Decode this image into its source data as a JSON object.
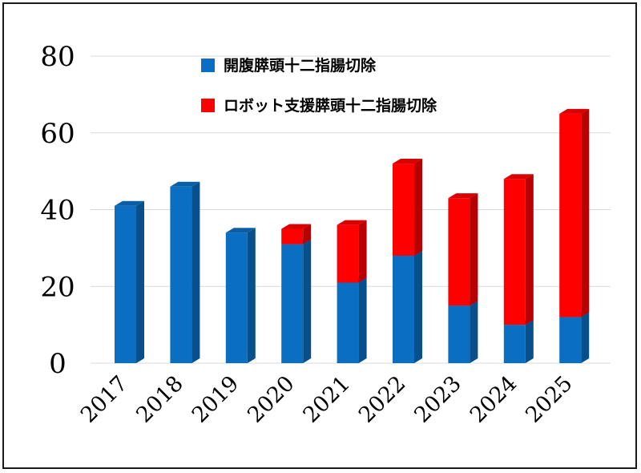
{
  "chart_data": {
    "type": "bar",
    "stacked": true,
    "categories": [
      "2017",
      "2018",
      "2019",
      "2020",
      "2021",
      "2022",
      "2023",
      "2024",
      "2025"
    ],
    "series": [
      {
        "name": "開腹膵頭十二指腸切除",
        "color": "#0a6fc2",
        "values": [
          41,
          46,
          34,
          31,
          21,
          28,
          15,
          10,
          12
        ]
      },
      {
        "name": "ロボット支援膵頭十二指腸切除",
        "color": "#ff0000",
        "values": [
          0,
          0,
          0,
          4,
          15,
          24,
          28,
          38,
          53
        ]
      }
    ],
    "yticks": [
      "0",
      "20",
      "40",
      "60",
      "80"
    ],
    "ylim": [
      0,
      80
    ],
    "grid": true,
    "legend_position": "top-center"
  }
}
